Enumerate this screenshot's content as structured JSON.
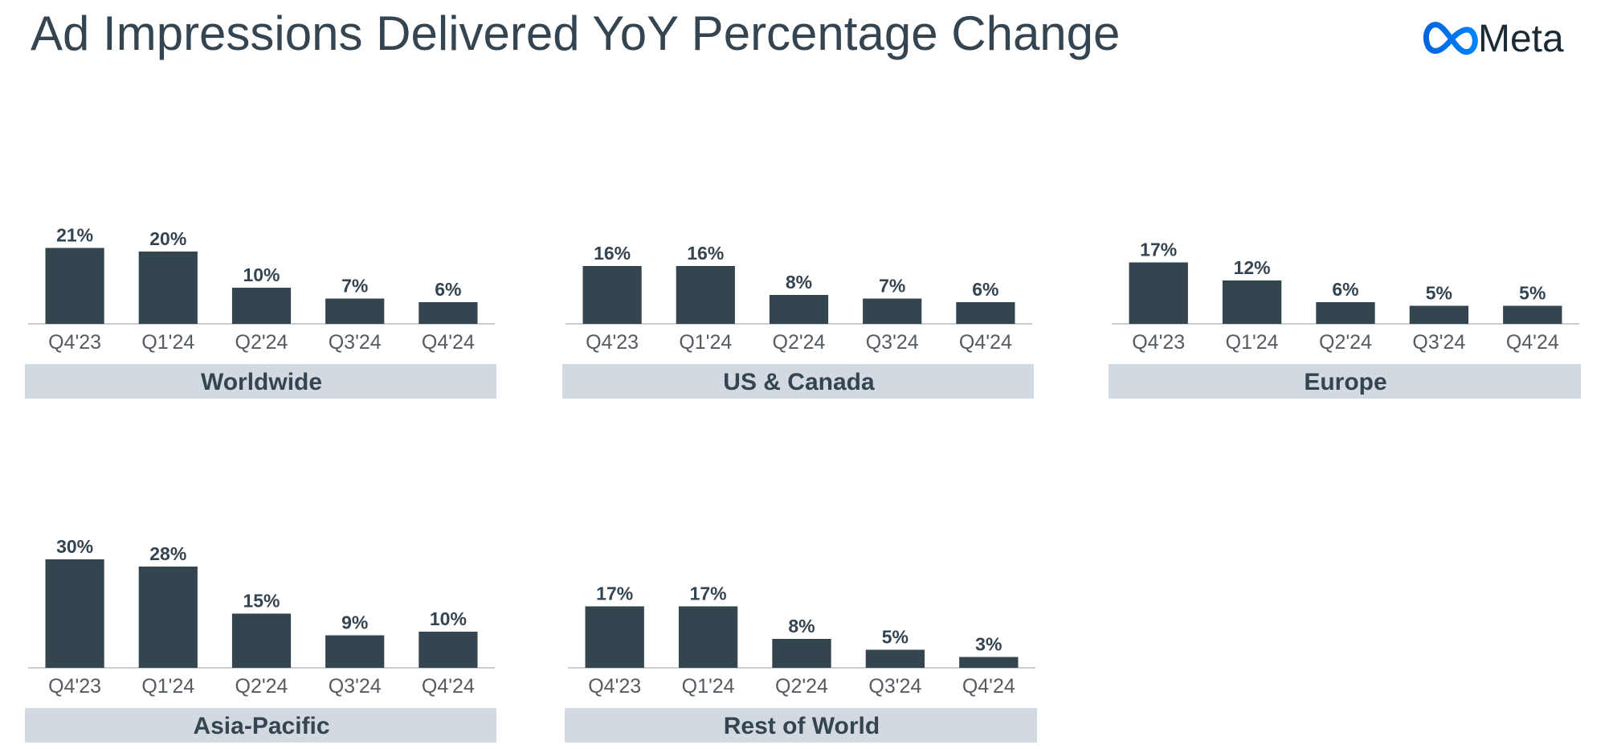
{
  "title": "Ad Impressions Delivered YoY Percentage Change",
  "logo": "Meta",
  "chart_data": [
    {
      "type": "bar",
      "title": "Worldwide",
      "categories": [
        "Q4'23",
        "Q1'24",
        "Q2'24",
        "Q3'24",
        "Q4'24"
      ],
      "values": [
        21,
        20,
        10,
        7,
        6
      ],
      "value_labels": [
        "21%",
        "20%",
        "10%",
        "7%",
        "6%"
      ],
      "color": "#354550"
    },
    {
      "type": "bar",
      "title": "US & Canada",
      "categories": [
        "Q4'23",
        "Q1'24",
        "Q2'24",
        "Q3'24",
        "Q4'24"
      ],
      "values": [
        16,
        16,
        8,
        7,
        6
      ],
      "value_labels": [
        "16%",
        "16%",
        "8%",
        "7%",
        "6%"
      ],
      "color": "#354550"
    },
    {
      "type": "bar",
      "title": "Europe",
      "categories": [
        "Q4'23",
        "Q1'24",
        "Q2'24",
        "Q3'24",
        "Q4'24"
      ],
      "values": [
        17,
        12,
        6,
        5,
        5
      ],
      "value_labels": [
        "17%",
        "12%",
        "6%",
        "5%",
        "5%"
      ],
      "color": "#354550"
    },
    {
      "type": "bar",
      "title": "Asia-Pacific",
      "categories": [
        "Q4'23",
        "Q1'24",
        "Q2'24",
        "Q3'24",
        "Q4'24"
      ],
      "values": [
        30,
        28,
        15,
        9,
        10
      ],
      "value_labels": [
        "30%",
        "28%",
        "15%",
        "9%",
        "10%"
      ],
      "color": "#354550"
    },
    {
      "type": "bar",
      "title": "Rest of World",
      "categories": [
        "Q4'23",
        "Q1'24",
        "Q2'24",
        "Q3'24",
        "Q4'24"
      ],
      "values": [
        17,
        17,
        8,
        5,
        3
      ],
      "value_labels": [
        "17%",
        "17%",
        "8%",
        "5%",
        "3%"
      ],
      "color": "#354550"
    }
  ]
}
